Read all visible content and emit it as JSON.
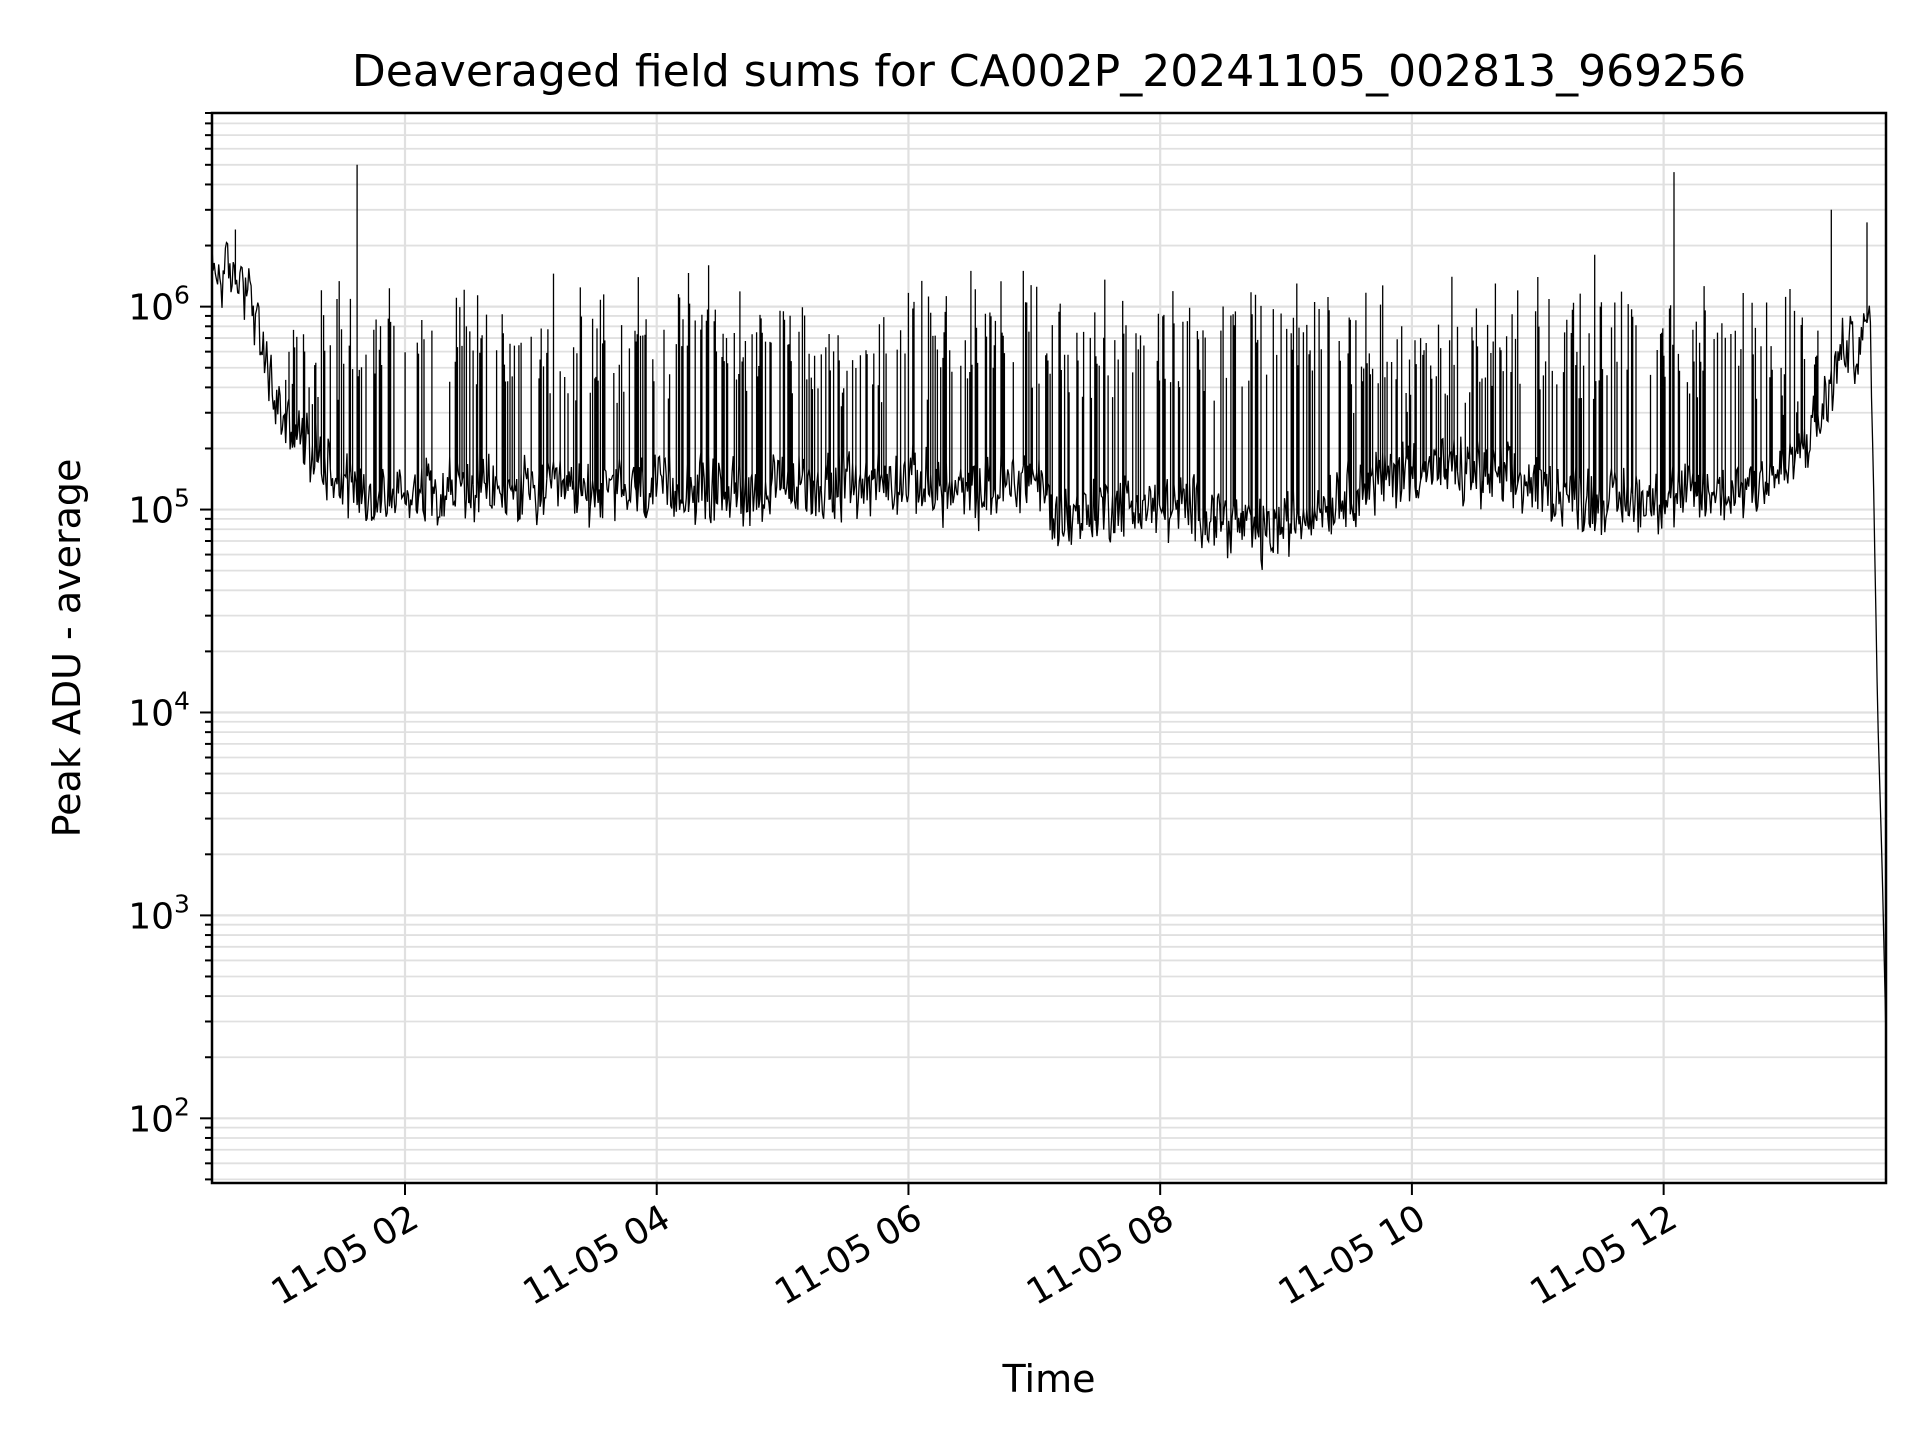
{
  "chart_data": {
    "type": "line",
    "title": "Deaveraged field sums for CA002P_20241105_002813_969256",
    "xlabel": "Time",
    "ylabel": "Peak ADU - average",
    "y_scale": "log",
    "ylim": [
      48,
      9000000
    ],
    "xlim": [
      "2024-11-05 00:28",
      "2024-11-05 13:46"
    ],
    "grid": true,
    "line_color": "#000000",
    "grid_color": "#e0e0e0",
    "x_ticks": [
      {
        "t": "2024-11-05 02:00",
        "label": "11-05 02"
      },
      {
        "t": "2024-11-05 04:00",
        "label": "11-05 04"
      },
      {
        "t": "2024-11-05 06:00",
        "label": "11-05 06"
      },
      {
        "t": "2024-11-05 08:00",
        "label": "11-05 08"
      },
      {
        "t": "2024-11-05 10:00",
        "label": "11-05 10"
      },
      {
        "t": "2024-11-05 12:00",
        "label": "11-05 12"
      }
    ],
    "y_ticks": [
      {
        "value": 100,
        "base": "10",
        "exp": "2"
      },
      {
        "value": 1000,
        "base": "10",
        "exp": "3"
      },
      {
        "value": 10000,
        "base": "10",
        "exp": "4"
      },
      {
        "value": 100000,
        "base": "10",
        "exp": "5"
      },
      {
        "value": 1000000,
        "base": "10",
        "exp": "6"
      }
    ],
    "series": [
      {
        "baseline": [
          {
            "t": "2024-11-05 00:28",
            "y": 1500000
          },
          {
            "t": "2024-11-05 00:40",
            "y": 1400000
          },
          {
            "t": "2024-11-05 00:45",
            "y": 1300000
          },
          {
            "t": "2024-11-05 00:52",
            "y": 600000
          },
          {
            "t": "2024-11-05 01:00",
            "y": 300000
          },
          {
            "t": "2024-11-05 01:10",
            "y": 220000
          },
          {
            "t": "2024-11-05 01:25",
            "y": 160000
          },
          {
            "t": "2024-11-05 01:45",
            "y": 110000
          },
          {
            "t": "2024-11-05 02:10",
            "y": 130000
          },
          {
            "t": "2024-11-05 03:00",
            "y": 120000
          },
          {
            "t": "2024-11-05 04:00",
            "y": 125000
          },
          {
            "t": "2024-11-05 05:00",
            "y": 125000
          },
          {
            "t": "2024-11-05 06:00",
            "y": 140000
          },
          {
            "t": "2024-11-05 06:30",
            "y": 115000
          },
          {
            "t": "2024-11-05 07:00",
            "y": 150000
          },
          {
            "t": "2024-11-05 07:10",
            "y": 90000
          },
          {
            "t": "2024-11-05 07:40",
            "y": 105000
          },
          {
            "t": "2024-11-05 08:20",
            "y": 100000
          },
          {
            "t": "2024-11-05 08:50",
            "y": 75000
          },
          {
            "t": "2024-11-05 09:20",
            "y": 110000
          },
          {
            "t": "2024-11-05 10:00",
            "y": 160000
          },
          {
            "t": "2024-11-05 10:30",
            "y": 150000
          },
          {
            "t": "2024-11-05 11:00",
            "y": 130000
          },
          {
            "t": "2024-11-05 11:30",
            "y": 110000
          },
          {
            "t": "2024-11-05 12:00",
            "y": 115000
          },
          {
            "t": "2024-11-05 12:30",
            "y": 120000
          },
          {
            "t": "2024-11-05 13:00",
            "y": 160000
          },
          {
            "t": "2024-11-05 13:15",
            "y": 280000
          },
          {
            "t": "2024-11-05 13:25",
            "y": 600000
          },
          {
            "t": "2024-11-05 13:35",
            "y": 650000
          },
          {
            "t": "2024-11-05 13:38",
            "y": 1000000
          },
          {
            "t": "2024-11-05 13:40",
            "y": 150000
          },
          {
            "t": "2024-11-05 13:42",
            "y": 10000
          },
          {
            "t": "2024-11-05 13:44",
            "y": 2000
          },
          {
            "t": "2024-11-05 13:46",
            "y": 250
          }
        ],
        "spikes": [
          {
            "t": "2024-11-05 01:37",
            "y": 5000000
          },
          {
            "t": "2024-11-05 12:05",
            "y": 4600000
          },
          {
            "t": "2024-11-05 13:20",
            "y": 3000000
          },
          {
            "t": "2024-11-05 13:37",
            "y": 2600000
          },
          {
            "t": "2024-11-05 00:39",
            "y": 2400000
          },
          {
            "t": "2024-11-05 11:27",
            "y": 1800000
          },
          {
            "t": "2024-11-05 04:25",
            "y": 1600000
          },
          {
            "t": "2024-11-05 06:30",
            "y": 1500000
          },
          {
            "t": "2024-11-05 11:00",
            "y": 1400000
          },
          {
            "t": "2024-11-05 06:55",
            "y": 1500000
          },
          {
            "t": "2024-11-05 09:05",
            "y": 1300000
          },
          {
            "t": "2024-11-05 10:40",
            "y": 1300000
          }
        ],
        "spike_count": 620,
        "spike_range": [
          800000,
          1500000
        ]
      }
    ]
  }
}
